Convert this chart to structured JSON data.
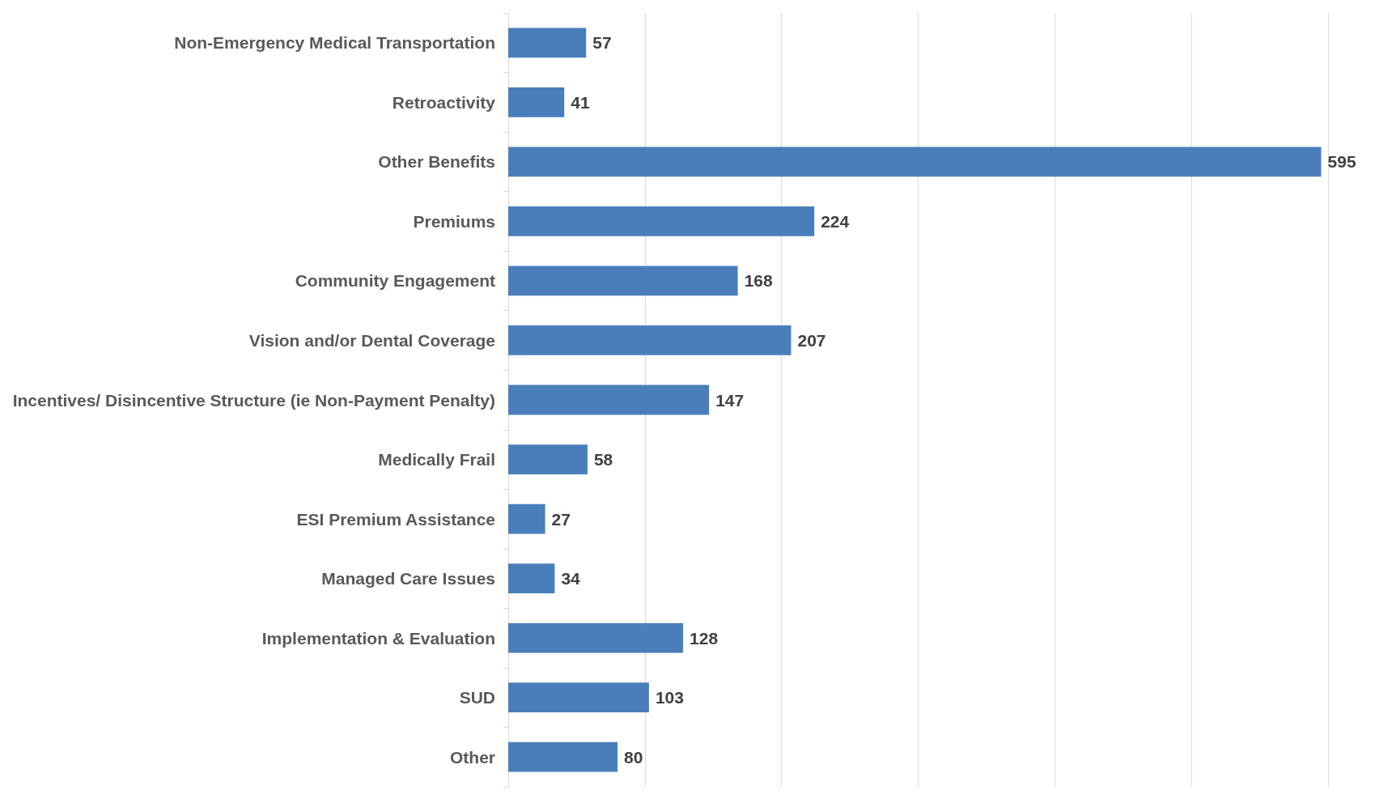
{
  "chart_data": {
    "type": "bar",
    "orientation": "horizontal",
    "categories": [
      "Non-Emergency Medical Transportation",
      "Retroactivity",
      "Other Benefits",
      "Premiums",
      "Community Engagement",
      "Vision and/or Dental Coverage",
      "Incentives/ Disincentive Structure (ie Non-Payment Penalty)",
      "Medically Frail",
      "ESI Premium Assistance",
      "Managed Care Issues",
      "Implementation & Evaluation",
      "SUD",
      "Other"
    ],
    "values": [
      57,
      41,
      595,
      224,
      168,
      207,
      147,
      58,
      27,
      34,
      128,
      103,
      80
    ],
    "color": "#4a7ebb",
    "xlim": [
      0,
      600
    ],
    "xticks": [
      {
        "value": 0,
        "label": null
      },
      {
        "value": 100,
        "label": null
      },
      {
        "value": 200,
        "label": null
      },
      {
        "value": 300,
        "label": null
      },
      {
        "value": 400,
        "label": null
      },
      {
        "value": 500,
        "label": null
      },
      {
        "value": 600,
        "label": null
      }
    ],
    "grid": "x",
    "tick_labels": "y",
    "data_labels": true
  }
}
